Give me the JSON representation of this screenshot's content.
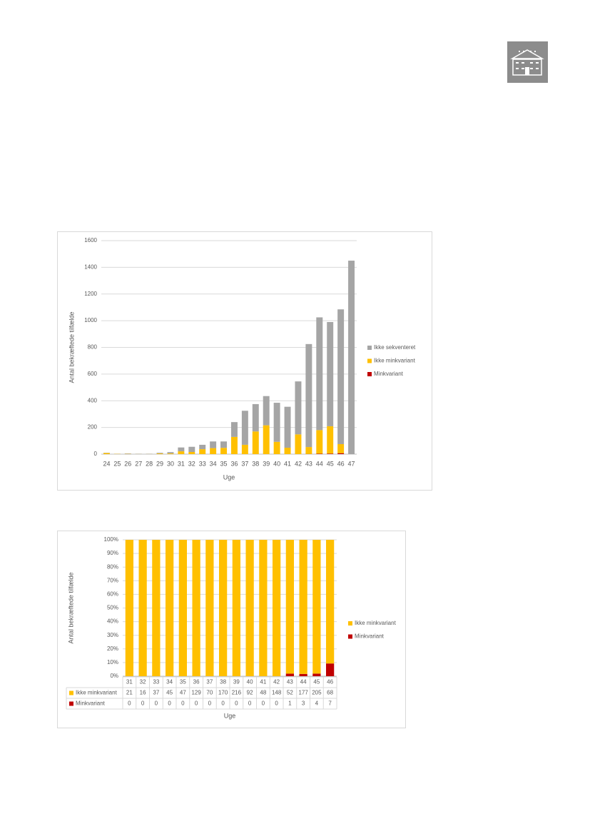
{
  "chart_data": [
    {
      "type": "bar",
      "stacked": true,
      "categories": [
        "24",
        "25",
        "26",
        "27",
        "28",
        "29",
        "30",
        "31",
        "32",
        "33",
        "34",
        "35",
        "36",
        "37",
        "38",
        "39",
        "40",
        "41",
        "42",
        "43",
        "44",
        "45",
        "46",
        "47"
      ],
      "series": [
        {
          "name": "Ikke sekventeret",
          "color": "#a5a5a5",
          "values": [
            2,
            1,
            3,
            2,
            2,
            5,
            10,
            29,
            39,
            33,
            50,
            48,
            111,
            255,
            205,
            219,
            293,
            307,
            397,
            772,
            845,
            781,
            1010,
            1450
          ]
        },
        {
          "name": "Ikke minkvariant",
          "color": "#ffc000",
          "values": [
            8,
            2,
            2,
            1,
            1,
            5,
            5,
            21,
            16,
            37,
            45,
            47,
            129,
            70,
            170,
            216,
            92,
            48,
            148,
            52,
            177,
            205,
            68,
            0
          ]
        },
        {
          "name": "Minkvariant",
          "color": "#c00000",
          "values": [
            0,
            0,
            0,
            0,
            0,
            0,
            0,
            0,
            0,
            0,
            0,
            0,
            0,
            0,
            0,
            0,
            0,
            0,
            0,
            1,
            3,
            4,
            7,
            0
          ]
        }
      ],
      "ylim": [
        0,
        1600
      ],
      "yticks": [
        0,
        200,
        400,
        600,
        800,
        1000,
        1200,
        1400,
        1600
      ],
      "grid": true,
      "legend": "right",
      "y_label": "Antal bekræftede tilfælde",
      "x_label": "Uge"
    },
    {
      "type": "bar",
      "stacked": "percent",
      "table": true,
      "categories": [
        "31",
        "32",
        "33",
        "34",
        "35",
        "36",
        "37",
        "38",
        "39",
        "40",
        "41",
        "42",
        "43",
        "44",
        "45",
        "46"
      ],
      "series": [
        {
          "name": "Ikke minkvariant",
          "color": "#ffc000",
          "values": [
            21,
            16,
            37,
            45,
            47,
            129,
            70,
            170,
            216,
            92,
            48,
            148,
            52,
            177,
            205,
            68
          ]
        },
        {
          "name": "Minkvariant",
          "color": "#c00000",
          "values": [
            0,
            0,
            0,
            0,
            0,
            0,
            0,
            0,
            0,
            0,
            0,
            0,
            1,
            3,
            4,
            7
          ]
        }
      ],
      "ylim": [
        0,
        100
      ],
      "yticks": [
        {
          "value": 0,
          "label": "0%"
        },
        {
          "value": 10,
          "label": "10%"
        },
        {
          "value": 20,
          "label": "20%"
        },
        {
          "value": 30,
          "label": "30%"
        },
        {
          "value": 40,
          "label": "40%"
        },
        {
          "value": 50,
          "label": "50%"
        },
        {
          "value": 60,
          "label": "60%"
        },
        {
          "value": 70,
          "label": "70%"
        },
        {
          "value": 80,
          "label": "80%"
        },
        {
          "value": 90,
          "label": "90%"
        },
        {
          "value": 100,
          "label": "100%"
        }
      ],
      "grid": true,
      "legend": "right",
      "y_label": "Antal bekræftede tilfælde",
      "x_label": "Uge"
    }
  ]
}
